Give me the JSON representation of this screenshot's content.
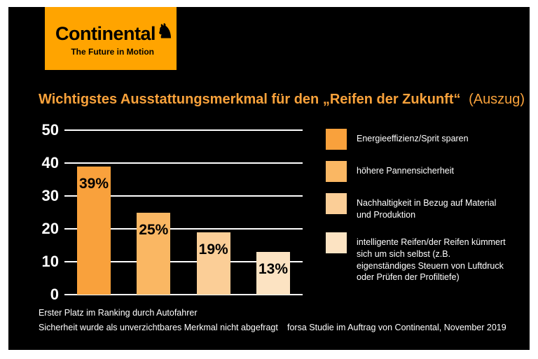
{
  "brand": {
    "logo_text": "Continental",
    "tagline": "The Future in Motion",
    "logo_bg": "#FFA400"
  },
  "title": {
    "main": "Wichtigstes Ausstattungsmerkmal für den „Reifen der Zukunft“",
    "suffix": "(Auszug)"
  },
  "chart_data": {
    "type": "bar",
    "categories": [
      "Energieeffizienz/Sprit sparen",
      "höhere Pannensicherheit",
      "Nachhaltigkeit in Bezug auf Material und Produktion",
      "intelligente Reifen/der Reifen kümmert sich um sich selbst (z.B. eigenständiges Steuern von Luftdruck oder Prüfen der Profiltiefe)"
    ],
    "values": [
      39,
      25,
      19,
      13
    ],
    "value_labels": [
      "39%",
      "25%",
      "19%",
      "13%"
    ],
    "bar_colors": [
      "#F9A13C",
      "#FAB763",
      "#FBCE97",
      "#FCE3C2"
    ],
    "title": "Wichtigstes Ausstattungsmerkmal für den „Reifen der Zukunft“ (Auszug)",
    "xlabel": "",
    "ylabel": "",
    "ylim": [
      0,
      50
    ],
    "yticks": [
      0,
      10,
      20,
      30,
      40,
      50
    ],
    "grid": true,
    "legend_position": "right",
    "background": "#000000",
    "accent_color": "#F9A23B"
  },
  "footnotes": {
    "line1": "Erster Platz im Ranking durch Autofahrer",
    "line2": "Sicherheit wurde als unverzichtbares Merkmal nicht abgefragt",
    "source": "forsa Studie im Auftrag von Continental, November 2019"
  }
}
